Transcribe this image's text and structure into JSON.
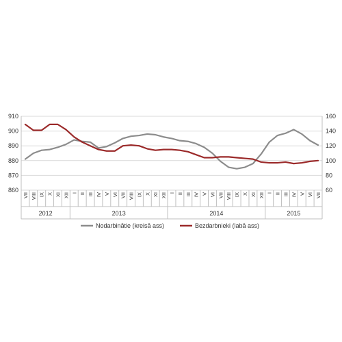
{
  "chart_data": {
    "type": "line",
    "months": [
      "VII",
      "VIII",
      "IX",
      "X",
      "XI",
      "XII",
      "I",
      "II",
      "III",
      "IV",
      "V",
      "VI",
      "VII",
      "VIII",
      "IX",
      "X",
      "XI",
      "XII",
      "I",
      "II",
      "III",
      "IV",
      "V",
      "VI",
      "VII",
      "VIII",
      "IX",
      "X",
      "XI",
      "XII",
      "I",
      "II",
      "III",
      "IV",
      "V",
      "VI",
      "VII"
    ],
    "years": [
      {
        "label": "2012",
        "count": 6
      },
      {
        "label": "2013",
        "count": 12
      },
      {
        "label": "2014",
        "count": 12
      },
      {
        "label": "2015",
        "count": 7
      }
    ],
    "left_axis": {
      "ticks": [
        "860",
        "870",
        "880",
        "890",
        "900",
        "910"
      ],
      "min": 860,
      "max": 910
    },
    "right_axis": {
      "ticks": [
        "60",
        "80",
        "100",
        "120",
        "140",
        "160"
      ],
      "min": 60,
      "max": 160
    },
    "series": [
      {
        "name": "Nodarbinātie (kreisā ass)",
        "axis": "left",
        "color": "#8c8c8c",
        "values": [
          881,
          885,
          887,
          887.5,
          889,
          891,
          894,
          893,
          892.5,
          888.5,
          889.5,
          892,
          895,
          896.5,
          897,
          898,
          897.5,
          896,
          895,
          893.5,
          893,
          891.5,
          889,
          885,
          879.5,
          875.5,
          874.5,
          875.5,
          878,
          884.5,
          892.5,
          897,
          898.5,
          901,
          898,
          893.5,
          890.5
        ]
      },
      {
        "name": "Bezdarbnieki (labā ass)",
        "axis": "right",
        "color": "#9b2a2a",
        "values": [
          149,
          141,
          141,
          149,
          149,
          142,
          132,
          125,
          120,
          115,
          113,
          113,
          120,
          121,
          120,
          116,
          114,
          115,
          115,
          114,
          112,
          108,
          104,
          104,
          105,
          105,
          104,
          103,
          102,
          98,
          97,
          97,
          98,
          96,
          97,
          99,
          100
        ]
      }
    ],
    "legend_position": "bottom"
  }
}
